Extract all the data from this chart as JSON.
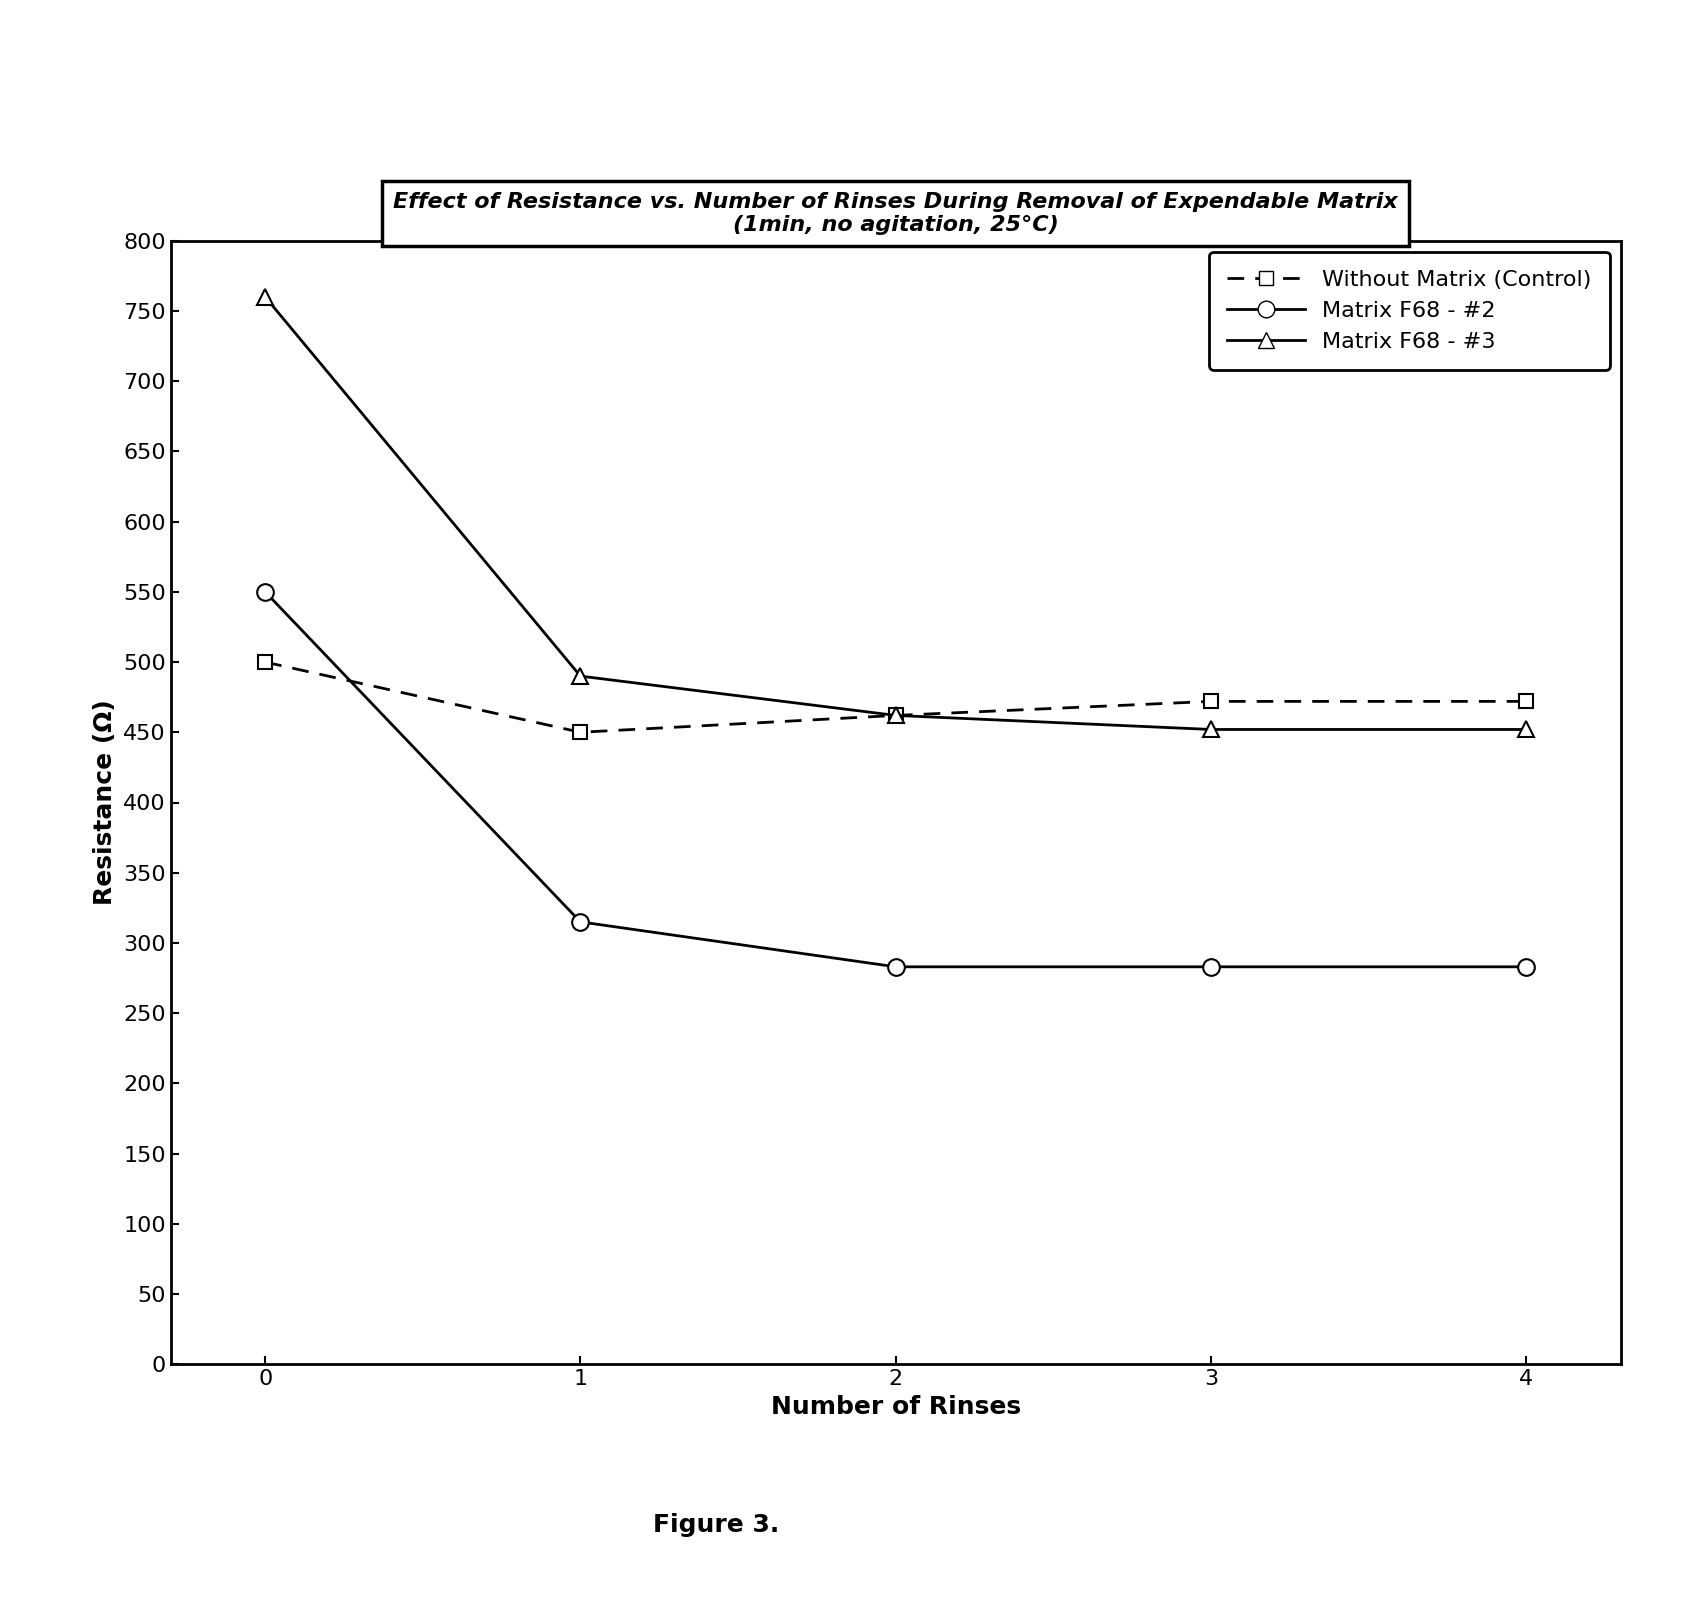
{
  "title_line1": "Effect of Resistance vs. Number of Rinses During Removal of Expendable Matrix",
  "title_line2": "(1min, no agitation, 25°C)",
  "xlabel": "Number of Rinses",
  "ylabel": "Resistance (Ω)",
  "x_values": [
    0,
    1,
    2,
    3,
    4
  ],
  "control_y": [
    500,
    450,
    462,
    472,
    472
  ],
  "f68_2_y": [
    550,
    315,
    283,
    283,
    283
  ],
  "f68_3_y": [
    760,
    490,
    462,
    452,
    452
  ],
  "ylim": [
    0,
    800
  ],
  "yticks": [
    0,
    50,
    100,
    150,
    200,
    250,
    300,
    350,
    400,
    450,
    500,
    550,
    600,
    650,
    700,
    750,
    800
  ],
  "legend_labels": [
    "Without Matrix (Control)",
    "Matrix F68 - #2",
    "Matrix F68 - #3"
  ],
  "figure_label": "Figure 3.",
  "bg_color": "#ffffff",
  "line_color": "#000000",
  "title_fontsize": 16,
  "label_fontsize": 18,
  "tick_fontsize": 16,
  "legend_fontsize": 16
}
